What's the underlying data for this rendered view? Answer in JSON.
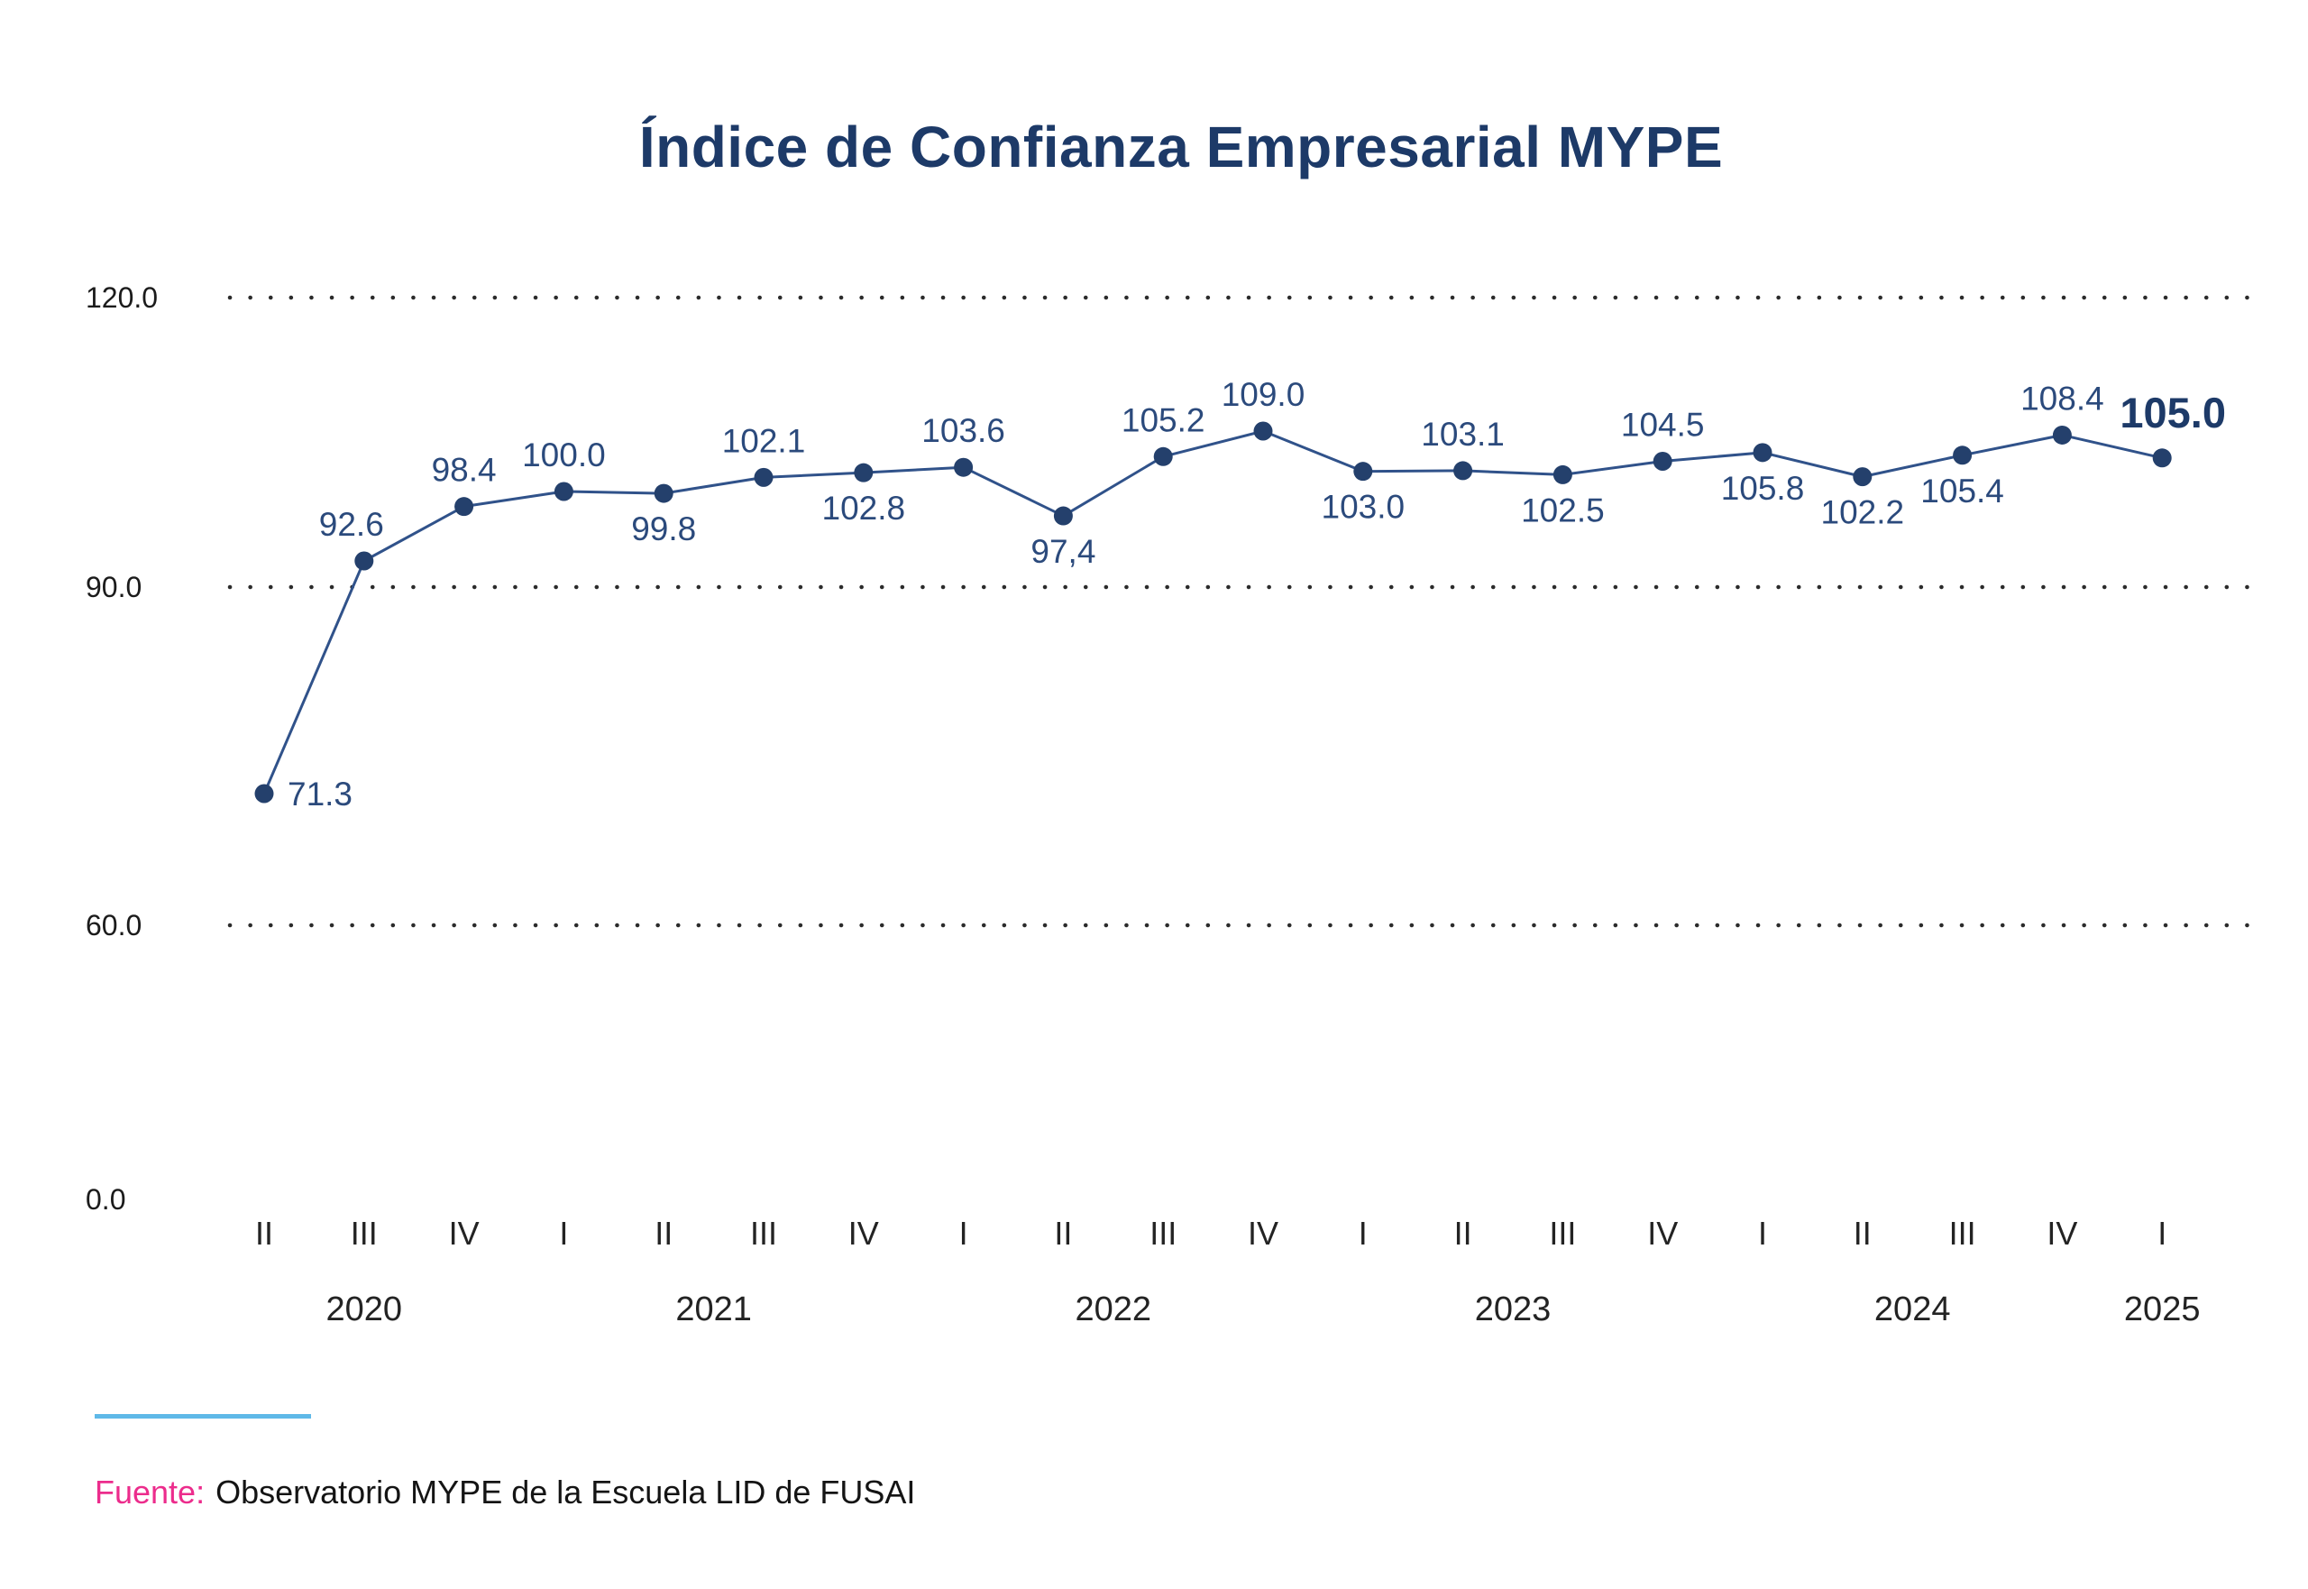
{
  "title": "Índice de Confianza Empresarial MYPE",
  "footer": {
    "source_label": "Fuente:",
    "source_text": "Observatorio MYPE de la Escuela LID de FUSAI"
  },
  "colors": {
    "title": "#1d3a68",
    "line": "#30528a",
    "point": "#24406c",
    "data_label": "#2b4a7c",
    "emphasis_label": "#1d3a68",
    "axis_label": "#1b1b1b",
    "grid_dot": "#2b2b2b",
    "quarter_label": "#232323",
    "year_label": "#232323",
    "source_label_pink": "#ec2c8c",
    "source_text": "#141414",
    "accent_line_blue": "#5fb9e8"
  },
  "chart_data": {
    "type": "line",
    "title": "Índice de Confianza Empresarial MYPE",
    "xlabel": "",
    "ylabel": "",
    "grid": "dotted-horizontal",
    "legend": "none",
    "y_axis": {
      "tick_labels": [
        "120.0",
        "90.0",
        "60.0",
        "0.0"
      ],
      "tick_values": [
        120.0,
        90.0,
        60.0,
        0.0
      ],
      "range": [
        0,
        120
      ]
    },
    "x_axis": {
      "quarters": [
        "II",
        "III",
        "IV",
        "I",
        "II",
        "III",
        "IV",
        "I",
        "II",
        "III",
        "IV",
        "I",
        "II",
        "III",
        "IV",
        "I",
        "II",
        "III",
        "IV",
        "I"
      ],
      "years": [
        {
          "label": "2020",
          "span": [
            0,
            2
          ]
        },
        {
          "label": "2021",
          "span": [
            3,
            6
          ]
        },
        {
          "label": "2022",
          "span": [
            7,
            10
          ]
        },
        {
          "label": "2023",
          "span": [
            11,
            14
          ]
        },
        {
          "label": "2024",
          "span": [
            15,
            18
          ]
        },
        {
          "label": "2025",
          "span": [
            19,
            19
          ]
        }
      ]
    },
    "series_name": "Índice de Confianza Empresarial MYPE",
    "points": [
      {
        "quarter": "II",
        "year": 2020,
        "value": 71.3,
        "label": "71.3",
        "label_pos": "right"
      },
      {
        "quarter": "III",
        "year": 2020,
        "value": 92.6,
        "label": "92.6",
        "label_pos": "above"
      },
      {
        "quarter": "IV",
        "year": 2020,
        "value": 98.4,
        "label": "98.4",
        "label_pos": "above"
      },
      {
        "quarter": "I",
        "year": 2021,
        "value": 100.0,
        "label": "100.0",
        "label_pos": "above"
      },
      {
        "quarter": "II",
        "year": 2021,
        "value": 99.8,
        "label": "99.8",
        "label_pos": "below"
      },
      {
        "quarter": "III",
        "year": 2021,
        "value": 102.1,
        "label": "102.1",
        "label_pos": "above"
      },
      {
        "quarter": "IV",
        "year": 2021,
        "value": 102.8,
        "label": "102.8",
        "label_pos": "below"
      },
      {
        "quarter": "I",
        "year": 2022,
        "value": 103.6,
        "label": "103.6",
        "label_pos": "above"
      },
      {
        "quarter": "II",
        "year": 2022,
        "value": 97.4,
        "label": "97,4",
        "label_pos": "below"
      },
      {
        "quarter": "III",
        "year": 2022,
        "value": 105.2,
        "label": "105.2",
        "label_pos": "above"
      },
      {
        "quarter": "IV",
        "year": 2022,
        "value": 109.0,
        "label": "109.0",
        "label_pos": "above"
      },
      {
        "quarter": "I",
        "year": 2023,
        "value": 103.0,
        "label": "103.0",
        "label_pos": "below"
      },
      {
        "quarter": "II",
        "year": 2023,
        "value": 103.1,
        "label": "103.1",
        "label_pos": "above"
      },
      {
        "quarter": "III",
        "year": 2023,
        "value": 102.5,
        "label": "102.5",
        "label_pos": "below"
      },
      {
        "quarter": "IV",
        "year": 2023,
        "value": 104.5,
        "label": "104.5",
        "label_pos": "above"
      },
      {
        "quarter": "I",
        "year": 2024,
        "value": 105.8,
        "label": "105.8",
        "label_pos": "below"
      },
      {
        "quarter": "II",
        "year": 2024,
        "value": 102.2,
        "label": "102.2",
        "label_pos": "below"
      },
      {
        "quarter": "III",
        "year": 2024,
        "value": 105.4,
        "label": "105.4",
        "label_pos": "below"
      },
      {
        "quarter": "IV",
        "year": 2024,
        "value": 108.4,
        "label": "108.4",
        "label_pos": "above"
      },
      {
        "quarter": "I",
        "year": 2025,
        "value": 105.0,
        "label": "105.0",
        "label_pos": "above",
        "emphasis": true
      }
    ]
  }
}
